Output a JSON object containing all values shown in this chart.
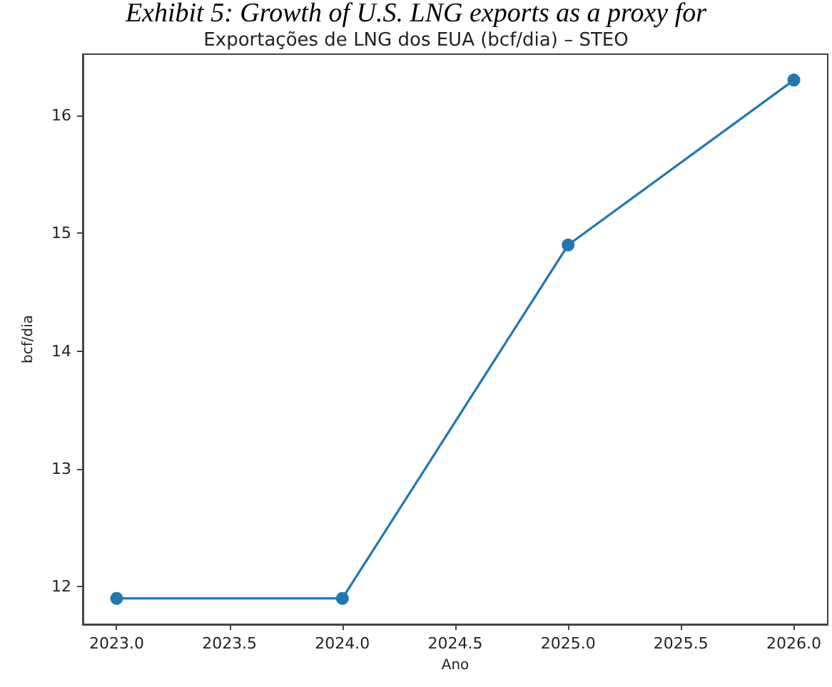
{
  "chart_data": {
    "type": "line",
    "title": "Exportações de LNG dos EUA (bcf/dia) – STEO",
    "xlabel": "Ano",
    "ylabel": "bcf/dia",
    "annotations": [
      "Exhibit 5: Growth of U.S. LNG exports as a proxy for"
    ],
    "x": [
      2023,
      2024,
      2025,
      2026
    ],
    "series": [
      {
        "color": "#1f77b4",
        "values": [
          11.9,
          11.9,
          14.9,
          16.3
        ]
      }
    ],
    "xlim": [
      2022.85,
      2026.15
    ],
    "xticks": [
      {
        "value": 2023,
        "label": "2023.0"
      },
      {
        "value": 2023.5,
        "label": "2023.5"
      },
      {
        "value": 2024,
        "label": "2024.0"
      },
      {
        "value": 2024.5,
        "label": "2024.5"
      },
      {
        "value": 2025,
        "label": "2025.0"
      },
      {
        "value": 2025.5,
        "label": "2025.5"
      },
      {
        "value": 2026,
        "label": "2026.0"
      }
    ],
    "ylim": [
      11.68,
      16.52
    ],
    "yticks": [
      12,
      13,
      14,
      15,
      16
    ],
    "grid": false,
    "marker": "circle",
    "line_style": "solid"
  }
}
